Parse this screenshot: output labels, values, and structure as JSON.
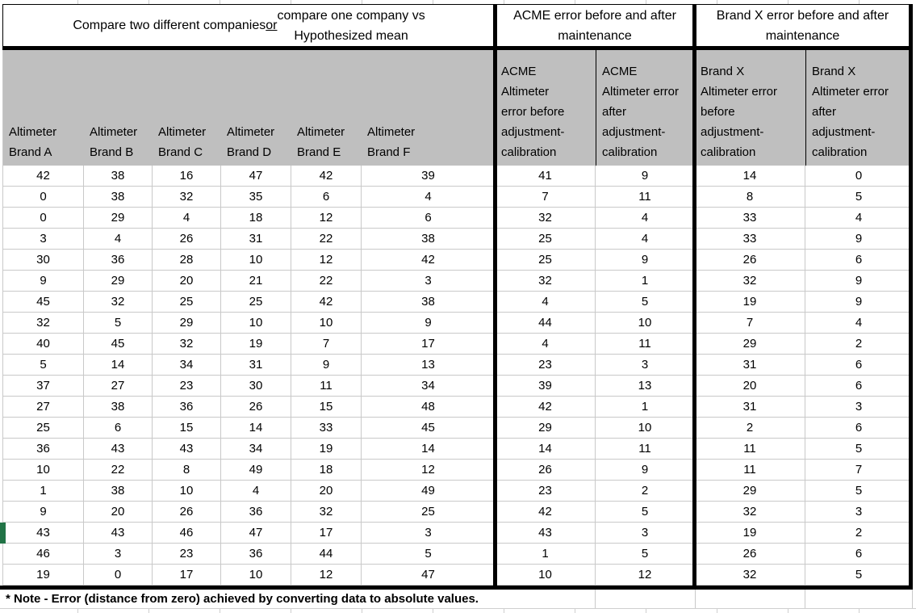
{
  "compare_section": {
    "title_part1": "Compare two different companies",
    "title_or": "or",
    "title_part2": "compare one company vs\nHypothesized mean",
    "columns": [
      "Altimeter\nBrand A",
      "Altimeter\nBrand B",
      "Altimeter\nBrand C",
      "Altimeter\nBrand D",
      "Altimeter\nBrand E",
      "Altimeter\nBrand F"
    ],
    "rows": [
      [
        42,
        38,
        16,
        47,
        42,
        39
      ],
      [
        0,
        38,
        32,
        35,
        6,
        4
      ],
      [
        0,
        29,
        4,
        18,
        12,
        6
      ],
      [
        3,
        4,
        26,
        31,
        22,
        38
      ],
      [
        30,
        36,
        28,
        10,
        12,
        42
      ],
      [
        9,
        29,
        20,
        21,
        22,
        3
      ],
      [
        45,
        32,
        25,
        25,
        42,
        38
      ],
      [
        32,
        5,
        29,
        10,
        10,
        9
      ],
      [
        40,
        45,
        32,
        19,
        7,
        17
      ],
      [
        5,
        14,
        34,
        31,
        9,
        13
      ],
      [
        37,
        27,
        23,
        30,
        11,
        34
      ],
      [
        27,
        38,
        36,
        26,
        15,
        48
      ],
      [
        25,
        6,
        15,
        14,
        33,
        45
      ],
      [
        36,
        43,
        43,
        34,
        19,
        14
      ],
      [
        10,
        22,
        8,
        49,
        18,
        12
      ],
      [
        1,
        38,
        10,
        4,
        20,
        49
      ],
      [
        9,
        20,
        26,
        36,
        32,
        25
      ],
      [
        43,
        43,
        46,
        47,
        17,
        3
      ],
      [
        46,
        3,
        23,
        36,
        44,
        5
      ],
      [
        19,
        0,
        17,
        10,
        12,
        47
      ]
    ]
  },
  "acme_section": {
    "title": "ACME error before and after maintenance",
    "columns": [
      "ACME\nAltimeter\nerror before\nadjustment-\ncalibration",
      "ACME\nAltimeter error\nafter\nadjustment-\ncalibration"
    ],
    "rows": [
      [
        41,
        9
      ],
      [
        7,
        11
      ],
      [
        32,
        4
      ],
      [
        25,
        4
      ],
      [
        25,
        9
      ],
      [
        32,
        1
      ],
      [
        4,
        5
      ],
      [
        44,
        10
      ],
      [
        4,
        11
      ],
      [
        23,
        3
      ],
      [
        39,
        13
      ],
      [
        42,
        1
      ],
      [
        29,
        10
      ],
      [
        14,
        11
      ],
      [
        26,
        9
      ],
      [
        23,
        2
      ],
      [
        42,
        5
      ],
      [
        43,
        3
      ],
      [
        1,
        5
      ],
      [
        10,
        12
      ]
    ]
  },
  "brandx_section": {
    "title": "Brand X error before and after maintenance",
    "columns": [
      "Brand X\nAltimeter error\nbefore\nadjustment-\ncalibration",
      "Brand X\nAltimeter error\nafter\nadjustment-\ncalibration"
    ],
    "rows": [
      [
        14,
        0
      ],
      [
        8,
        5
      ],
      [
        33,
        4
      ],
      [
        33,
        9
      ],
      [
        26,
        6
      ],
      [
        32,
        9
      ],
      [
        19,
        9
      ],
      [
        7,
        4
      ],
      [
        29,
        2
      ],
      [
        31,
        6
      ],
      [
        20,
        6
      ],
      [
        31,
        3
      ],
      [
        2,
        6
      ],
      [
        11,
        5
      ],
      [
        11,
        7
      ],
      [
        29,
        5
      ],
      [
        32,
        3
      ],
      [
        19,
        2
      ],
      [
        26,
        6
      ],
      [
        32,
        5
      ]
    ]
  },
  "footnote": "* Note - Error (distance from zero) achieved by converting data to absolute values.",
  "colors": {
    "header_bg": "#BFBFBF",
    "gridline": "#C9C9C9",
    "section_border": "#000000",
    "selection_green": "#217346"
  }
}
